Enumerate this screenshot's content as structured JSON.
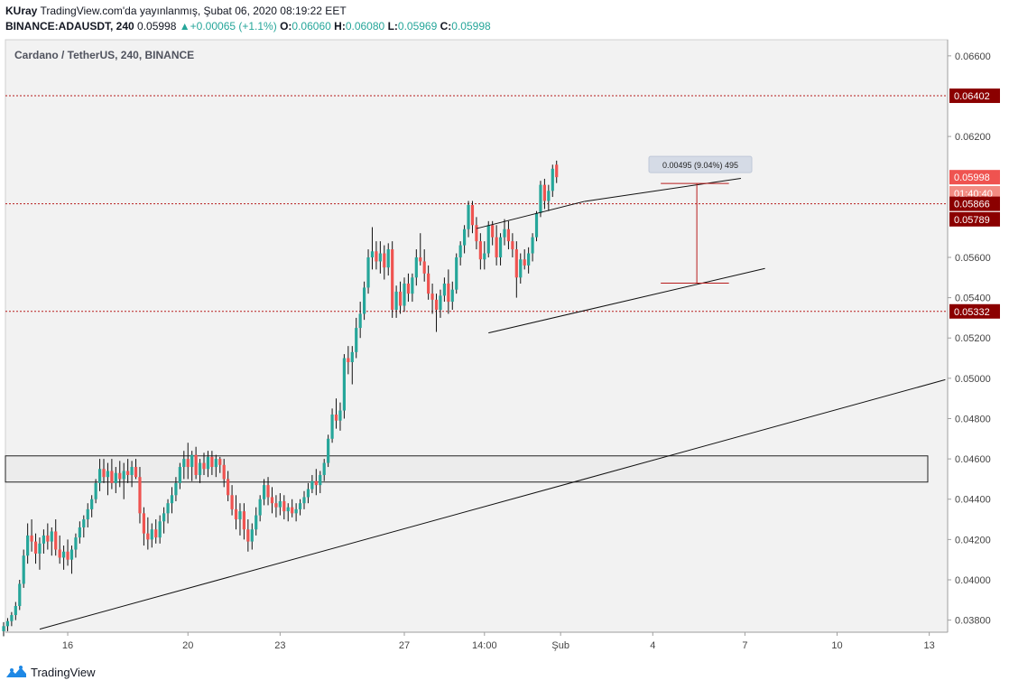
{
  "header": {
    "author": "KUray",
    "published": "TradingView.com'da yayınlanmış, Şubat 06, 2020 08:19:22 EET",
    "symbol": "BINANCE:ADAUSDT, 240",
    "last": "0.05998",
    "change": "+0.00065 (+1.1%)",
    "o_label": "O:",
    "o_value": "0.06060",
    "h_label": "H:",
    "h_value": "0.06080",
    "l_label": "L:",
    "l_value": "0.05969",
    "c_label": "C:",
    "c_value": "0.05998"
  },
  "footer": {
    "brand": "TradingView"
  },
  "colors": {
    "up": "#26a69a",
    "down": "#ef5350",
    "level": "#b71c1c",
    "last": "#ef5350"
  },
  "chart_data": {
    "type": "candlestick",
    "title": "Cardano / TetherUS, 240, BINANCE",
    "ylim": [
      0.0374,
      0.0668
    ],
    "y_ticks": [
      "0.06600",
      "0.06200",
      "0.05600",
      "0.05400",
      "0.05200",
      "0.05000",
      "0.04800",
      "0.04600",
      "0.04400",
      "0.04200",
      "0.04000",
      "0.03800"
    ],
    "x_range": [
      0,
      235
    ],
    "x_ticks": [
      {
        "label": "16",
        "x": 16
      },
      {
        "label": "20",
        "x": 46
      },
      {
        "label": "23",
        "x": 69
      },
      {
        "label": "27",
        "x": 100
      },
      {
        "label": "14:00",
        "x": 120
      },
      {
        "label": "Şub",
        "x": 139
      },
      {
        "label": "4",
        "x": 162
      },
      {
        "label": "7",
        "x": 185
      },
      {
        "label": "10",
        "x": 208
      },
      {
        "label": "13",
        "x": 231
      }
    ],
    "price_labels": [
      {
        "label": "0.06402",
        "price": 0.06402,
        "style": "level"
      },
      {
        "label": "0.05998",
        "price": 0.05998,
        "style": "last"
      },
      {
        "label": "01:40:40",
        "price": 0.05918,
        "style": "timer"
      },
      {
        "label": "0.05866",
        "price": 0.05866,
        "style": "level"
      },
      {
        "label": "0.05789",
        "price": 0.05789,
        "style": "level"
      },
      {
        "label": "0.05332",
        "price": 0.05332,
        "style": "level"
      }
    ],
    "horizontal_levels": [
      0.06402,
      0.05866,
      0.05332
    ],
    "zone": {
      "top": 0.04615,
      "bottom": 0.04485
    },
    "trend_lines": [
      {
        "x1": 9,
        "y1": 0.03755,
        "x2": 235,
        "y2": 0.04993
      },
      {
        "x1": 118,
        "y1": 0.05743,
        "x2": 145,
        "y2": 0.05878
      },
      {
        "x1": 145,
        "y1": 0.05878,
        "x2": 184,
        "y2": 0.05992
      },
      {
        "x1": 121,
        "y1": 0.05225,
        "x2": 190,
        "y2": 0.05545
      }
    ],
    "measure": {
      "label": "0.00495 (9.04%) 495",
      "x_start": 164,
      "x_end": 181,
      "x_vertical": 173,
      "price_top": 0.05967,
      "price_bottom": 0.05472
    },
    "candles": [
      [
        0.03745,
        0.0379,
        0.0372,
        0.0377
      ],
      [
        0.0377,
        0.0381,
        0.03745,
        0.03795
      ],
      [
        0.03795,
        0.0384,
        0.0377,
        0.03825
      ],
      [
        0.03825,
        0.0389,
        0.038,
        0.0387
      ],
      [
        0.0387,
        0.04,
        0.0385,
        0.0398
      ],
      [
        0.0398,
        0.0415,
        0.0396,
        0.0412
      ],
      [
        0.0412,
        0.0428,
        0.0408,
        0.0422
      ],
      [
        0.0422,
        0.043,
        0.0414,
        0.0419
      ],
      [
        0.0419,
        0.0423,
        0.0408,
        0.0413
      ],
      [
        0.0413,
        0.0421,
        0.0405,
        0.0418
      ],
      [
        0.0418,
        0.0425,
        0.0413,
        0.0422
      ],
      [
        0.0422,
        0.0428,
        0.0415,
        0.0419
      ],
      [
        0.0419,
        0.0426,
        0.0412,
        0.0424
      ],
      [
        0.0424,
        0.043,
        0.0412,
        0.0415
      ],
      [
        0.0415,
        0.0422,
        0.0408,
        0.0411
      ],
      [
        0.0411,
        0.0417,
        0.0405,
        0.0414
      ],
      [
        0.0414,
        0.042,
        0.0407,
        0.041
      ],
      [
        0.041,
        0.0417,
        0.0403,
        0.0415
      ],
      [
        0.0415,
        0.0423,
        0.0411,
        0.0421
      ],
      [
        0.0421,
        0.0429,
        0.0418,
        0.0426
      ],
      [
        0.0426,
        0.0432,
        0.0421,
        0.043
      ],
      [
        0.043,
        0.0438,
        0.0426,
        0.0435
      ],
      [
        0.0435,
        0.0442,
        0.0431,
        0.044
      ],
      [
        0.044,
        0.045,
        0.0438,
        0.0448
      ],
      [
        0.0448,
        0.046,
        0.0444,
        0.0455
      ],
      [
        0.0455,
        0.046,
        0.0448,
        0.0451
      ],
      [
        0.0451,
        0.0458,
        0.0442,
        0.0454
      ],
      [
        0.0454,
        0.046,
        0.0445,
        0.0448
      ],
      [
        0.0448,
        0.0456,
        0.0443,
        0.0453
      ],
      [
        0.0453,
        0.0459,
        0.0446,
        0.045
      ],
      [
        0.045,
        0.0458,
        0.044,
        0.0454
      ],
      [
        0.0454,
        0.046,
        0.0448,
        0.0452
      ],
      [
        0.0452,
        0.0459,
        0.0446,
        0.0456
      ],
      [
        0.0456,
        0.046,
        0.045,
        0.0451
      ],
      [
        0.0451,
        0.0456,
        0.0428,
        0.0433
      ],
      [
        0.0433,
        0.0436,
        0.0417,
        0.0423
      ],
      [
        0.0423,
        0.0431,
        0.0415,
        0.042
      ],
      [
        0.042,
        0.0428,
        0.0416,
        0.0425
      ],
      [
        0.0425,
        0.043,
        0.0418,
        0.0421
      ],
      [
        0.0421,
        0.0432,
        0.0418,
        0.0429
      ],
      [
        0.0429,
        0.0436,
        0.0423,
        0.0433
      ],
      [
        0.0433,
        0.044,
        0.0428,
        0.0438
      ],
      [
        0.0438,
        0.0446,
        0.0433,
        0.0442
      ],
      [
        0.0442,
        0.0451,
        0.0439,
        0.0448
      ],
      [
        0.0448,
        0.0458,
        0.0445,
        0.0456
      ],
      [
        0.0456,
        0.0464,
        0.045,
        0.046
      ],
      [
        0.046,
        0.0468,
        0.045,
        0.0456
      ],
      [
        0.0456,
        0.0464,
        0.0449,
        0.0462
      ],
      [
        0.0462,
        0.0466,
        0.045,
        0.0452
      ],
      [
        0.0452,
        0.046,
        0.0448,
        0.0458
      ],
      [
        0.0458,
        0.0463,
        0.0452,
        0.0455
      ],
      [
        0.0455,
        0.0464,
        0.0451,
        0.0461
      ],
      [
        0.0461,
        0.0464,
        0.0452,
        0.0456
      ],
      [
        0.0456,
        0.0462,
        0.0451,
        0.046
      ],
      [
        0.046,
        0.0461,
        0.0453,
        0.0457
      ],
      [
        0.0457,
        0.046,
        0.0446,
        0.045
      ],
      [
        0.045,
        0.0454,
        0.0439,
        0.0442
      ],
      [
        0.0442,
        0.0447,
        0.0432,
        0.0435
      ],
      [
        0.0435,
        0.0442,
        0.0425,
        0.043
      ],
      [
        0.043,
        0.0438,
        0.0422,
        0.0434
      ],
      [
        0.0434,
        0.0438,
        0.042,
        0.0425
      ],
      [
        0.0425,
        0.043,
        0.0414,
        0.0419
      ],
      [
        0.0419,
        0.0428,
        0.0415,
        0.0425
      ],
      [
        0.0425,
        0.0436,
        0.0422,
        0.0432
      ],
      [
        0.0432,
        0.0442,
        0.0429,
        0.044
      ],
      [
        0.044,
        0.045,
        0.0437,
        0.0447
      ],
      [
        0.0447,
        0.0451,
        0.0437,
        0.0441
      ],
      [
        0.0441,
        0.0446,
        0.0433,
        0.0438
      ],
      [
        0.0438,
        0.0442,
        0.0431,
        0.0436
      ],
      [
        0.0436,
        0.0443,
        0.0432,
        0.0439
      ],
      [
        0.0439,
        0.0442,
        0.043,
        0.0434
      ],
      [
        0.0434,
        0.0438,
        0.0429,
        0.0436
      ],
      [
        0.0436,
        0.044,
        0.0431,
        0.0433
      ],
      [
        0.0433,
        0.0438,
        0.0429,
        0.0435
      ],
      [
        0.0435,
        0.044,
        0.0432,
        0.0438
      ],
      [
        0.0438,
        0.0444,
        0.0435,
        0.0441
      ],
      [
        0.0441,
        0.0448,
        0.0438,
        0.0445
      ],
      [
        0.0445,
        0.0452,
        0.0443,
        0.0449
      ],
      [
        0.0449,
        0.0455,
        0.0442,
        0.0447
      ],
      [
        0.0447,
        0.0454,
        0.0443,
        0.0452
      ],
      [
        0.0452,
        0.046,
        0.0449,
        0.0458
      ],
      [
        0.0458,
        0.0472,
        0.0456,
        0.047
      ],
      [
        0.047,
        0.0485,
        0.0468,
        0.0482
      ],
      [
        0.0482,
        0.049,
        0.0475,
        0.0479
      ],
      [
        0.0479,
        0.0488,
        0.0474,
        0.0484
      ],
      [
        0.0484,
        0.0512,
        0.048,
        0.051
      ],
      [
        0.051,
        0.0516,
        0.0502,
        0.0508
      ],
      [
        0.0508,
        0.0516,
        0.0497,
        0.0513
      ],
      [
        0.0513,
        0.053,
        0.051,
        0.0525
      ],
      [
        0.0525,
        0.0538,
        0.052,
        0.0532
      ],
      [
        0.0532,
        0.0548,
        0.0529,
        0.0545
      ],
      [
        0.0545,
        0.0564,
        0.0542,
        0.056
      ],
      [
        0.056,
        0.0575,
        0.0554,
        0.0563
      ],
      [
        0.0563,
        0.0568,
        0.0554,
        0.0558
      ],
      [
        0.0558,
        0.0568,
        0.0552,
        0.0562
      ],
      [
        0.0562,
        0.0566,
        0.0549,
        0.0555
      ],
      [
        0.0555,
        0.0567,
        0.0551,
        0.0564
      ],
      [
        0.0564,
        0.0568,
        0.053,
        0.0534
      ],
      [
        0.0534,
        0.0546,
        0.053,
        0.0543
      ],
      [
        0.0543,
        0.0548,
        0.0532,
        0.0536
      ],
      [
        0.0536,
        0.055,
        0.0533,
        0.0547
      ],
      [
        0.0547,
        0.0552,
        0.0538,
        0.0542
      ],
      [
        0.0542,
        0.0552,
        0.0538,
        0.055
      ],
      [
        0.055,
        0.0564,
        0.0546,
        0.056
      ],
      [
        0.056,
        0.0572,
        0.0556,
        0.0558
      ],
      [
        0.0558,
        0.0564,
        0.0548,
        0.0552
      ],
      [
        0.0552,
        0.0556,
        0.0539,
        0.0542
      ],
      [
        0.0542,
        0.0547,
        0.0532,
        0.0539
      ],
      [
        0.0539,
        0.0542,
        0.0523,
        0.0534
      ],
      [
        0.0534,
        0.0544,
        0.053,
        0.0541
      ],
      [
        0.0541,
        0.055,
        0.0538,
        0.0547
      ],
      [
        0.0547,
        0.0554,
        0.0532,
        0.0538
      ],
      [
        0.0538,
        0.0548,
        0.0534,
        0.0544
      ],
      [
        0.0544,
        0.0562,
        0.0542,
        0.056
      ],
      [
        0.056,
        0.0568,
        0.0556,
        0.0566
      ],
      [
        0.0566,
        0.0576,
        0.0562,
        0.0574
      ],
      [
        0.0574,
        0.0588,
        0.057,
        0.0586
      ],
      [
        0.0586,
        0.0588,
        0.0572,
        0.0576
      ],
      [
        0.0576,
        0.058,
        0.0564,
        0.0568
      ],
      [
        0.0568,
        0.0572,
        0.0554,
        0.0559
      ],
      [
        0.0559,
        0.0568,
        0.0554,
        0.0562
      ],
      [
        0.0562,
        0.0578,
        0.056,
        0.0576
      ],
      [
        0.0576,
        0.0578,
        0.0566,
        0.057
      ],
      [
        0.057,
        0.0576,
        0.0556,
        0.056
      ],
      [
        0.056,
        0.0572,
        0.0556,
        0.057
      ],
      [
        0.057,
        0.0579,
        0.0566,
        0.0574
      ],
      [
        0.0574,
        0.0578,
        0.0564,
        0.0568
      ],
      [
        0.0568,
        0.0572,
        0.056,
        0.0564
      ],
      [
        0.0564,
        0.0568,
        0.054,
        0.055
      ],
      [
        0.055,
        0.0562,
        0.0547,
        0.0559
      ],
      [
        0.0559,
        0.0564,
        0.0554,
        0.0556
      ],
      [
        0.0556,
        0.0565,
        0.0552,
        0.0562
      ],
      [
        0.0562,
        0.0572,
        0.0558,
        0.057
      ],
      [
        0.057,
        0.0583,
        0.0568,
        0.0582
      ],
      [
        0.0582,
        0.0598,
        0.058,
        0.0596
      ],
      [
        0.0596,
        0.0599,
        0.0584,
        0.0588
      ],
      [
        0.0588,
        0.0596,
        0.0583,
        0.0593
      ],
      [
        0.0593,
        0.0606,
        0.059,
        0.0604
      ],
      [
        0.0606,
        0.0608,
        0.05969,
        0.05998
      ]
    ]
  }
}
